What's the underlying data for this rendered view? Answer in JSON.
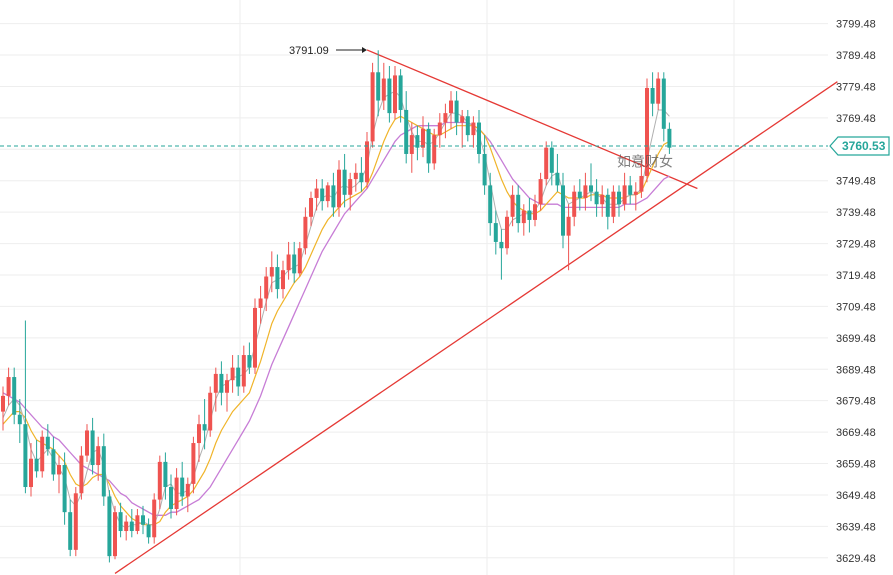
{
  "chart_data": {
    "type": "candlestick",
    "title": "",
    "xlabel": "",
    "ylabel": "",
    "ylim": [
      3624,
      3807
    ],
    "y_ticks": [
      3799.48,
      3789.48,
      3779.48,
      3769.48,
      3759.48,
      3749.48,
      3739.48,
      3729.48,
      3719.48,
      3709.48,
      3699.48,
      3689.48,
      3679.48,
      3669.48,
      3659.48,
      3649.48,
      3639.48,
      3629.48
    ],
    "y_tick_labels": [
      "3799.48",
      "3789.48",
      "3779.48",
      "3769.48",
      "3759.48",
      "3749.48",
      "3739.48",
      "3729.48",
      "3719.48",
      "3709.48",
      "3699.48",
      "3689.48",
      "3679.48",
      "3669.48",
      "3659.48",
      "3649.48",
      "3639.48",
      "3629.48"
    ],
    "grid": true,
    "last_price": 3760.53,
    "last_price_label": "3760.53",
    "high_marker": {
      "value": 3791.09,
      "label": "3791.09"
    },
    "watermark": "如意财女",
    "colors": {
      "up": "#ef5350",
      "down": "#26a69a",
      "trendline": "#e53935",
      "ma_fast": "#b0b0b0",
      "ma_mid": "#f0b429",
      "ma_slow": "#c77dd6",
      "price_line": "#26a69a",
      "grid": "#eeeeee"
    },
    "candles": [
      {
        "o": 3676,
        "h": 3684,
        "l": 3670,
        "c": 3681
      },
      {
        "o": 3681,
        "h": 3690,
        "l": 3678,
        "c": 3687
      },
      {
        "o": 3687,
        "h": 3690,
        "l": 3672,
        "c": 3675
      },
      {
        "o": 3675,
        "h": 3680,
        "l": 3666,
        "c": 3672
      },
      {
        "o": 3672,
        "h": 3705,
        "l": 3650,
        "c": 3652
      },
      {
        "o": 3652,
        "h": 3666,
        "l": 3649,
        "c": 3661
      },
      {
        "o": 3661,
        "h": 3667,
        "l": 3655,
        "c": 3657
      },
      {
        "o": 3657,
        "h": 3670,
        "l": 3655,
        "c": 3668
      },
      {
        "o": 3668,
        "h": 3672,
        "l": 3662,
        "c": 3664
      },
      {
        "o": 3664,
        "h": 3668,
        "l": 3654,
        "c": 3656
      },
      {
        "o": 3656,
        "h": 3662,
        "l": 3650,
        "c": 3659
      },
      {
        "o": 3659,
        "h": 3663,
        "l": 3640,
        "c": 3644
      },
      {
        "o": 3644,
        "h": 3648,
        "l": 3630,
        "c": 3632
      },
      {
        "o": 3632,
        "h": 3652,
        "l": 3630,
        "c": 3650
      },
      {
        "o": 3650,
        "h": 3665,
        "l": 3648,
        "c": 3662
      },
      {
        "o": 3662,
        "h": 3672,
        "l": 3660,
        "c": 3670
      },
      {
        "o": 3670,
        "h": 3674,
        "l": 3656,
        "c": 3659
      },
      {
        "o": 3659,
        "h": 3668,
        "l": 3654,
        "c": 3665
      },
      {
        "o": 3665,
        "h": 3669,
        "l": 3646,
        "c": 3649
      },
      {
        "o": 3649,
        "h": 3651,
        "l": 3628,
        "c": 3630
      },
      {
        "o": 3630,
        "h": 3646,
        "l": 3629,
        "c": 3644
      },
      {
        "o": 3644,
        "h": 3647,
        "l": 3636,
        "c": 3638
      },
      {
        "o": 3638,
        "h": 3643,
        "l": 3635,
        "c": 3641
      },
      {
        "o": 3641,
        "h": 3645,
        "l": 3636,
        "c": 3638
      },
      {
        "o": 3638,
        "h": 3645,
        "l": 3637,
        "c": 3643
      },
      {
        "o": 3643,
        "h": 3646,
        "l": 3637,
        "c": 3640
      },
      {
        "o": 3640,
        "h": 3642,
        "l": 3634,
        "c": 3636
      },
      {
        "o": 3636,
        "h": 3650,
        "l": 3634,
        "c": 3648
      },
      {
        "o": 3648,
        "h": 3662,
        "l": 3645,
        "c": 3660
      },
      {
        "o": 3660,
        "h": 3663,
        "l": 3648,
        "c": 3652
      },
      {
        "o": 3652,
        "h": 3656,
        "l": 3642,
        "c": 3645
      },
      {
        "o": 3645,
        "h": 3658,
        "l": 3643,
        "c": 3655
      },
      {
        "o": 3655,
        "h": 3660,
        "l": 3646,
        "c": 3649
      },
      {
        "o": 3649,
        "h": 3655,
        "l": 3644,
        "c": 3653
      },
      {
        "o": 3653,
        "h": 3668,
        "l": 3650,
        "c": 3666
      },
      {
        "o": 3666,
        "h": 3675,
        "l": 3660,
        "c": 3672
      },
      {
        "o": 3672,
        "h": 3680,
        "l": 3664,
        "c": 3670
      },
      {
        "o": 3670,
        "h": 3684,
        "l": 3668,
        "c": 3682
      },
      {
        "o": 3682,
        "h": 3690,
        "l": 3676,
        "c": 3688
      },
      {
        "o": 3688,
        "h": 3692,
        "l": 3678,
        "c": 3682
      },
      {
        "o": 3682,
        "h": 3688,
        "l": 3676,
        "c": 3686
      },
      {
        "o": 3686,
        "h": 3694,
        "l": 3682,
        "c": 3690
      },
      {
        "o": 3690,
        "h": 3694,
        "l": 3681,
        "c": 3684
      },
      {
        "o": 3684,
        "h": 3697,
        "l": 3682,
        "c": 3694
      },
      {
        "o": 3694,
        "h": 3698,
        "l": 3688,
        "c": 3690
      },
      {
        "o": 3690,
        "h": 3712,
        "l": 3688,
        "c": 3709
      },
      {
        "o": 3709,
        "h": 3716,
        "l": 3704,
        "c": 3712
      },
      {
        "o": 3712,
        "h": 3722,
        "l": 3708,
        "c": 3719
      },
      {
        "o": 3719,
        "h": 3727,
        "l": 3714,
        "c": 3722
      },
      {
        "o": 3722,
        "h": 3726,
        "l": 3712,
        "c": 3715
      },
      {
        "o": 3715,
        "h": 3724,
        "l": 3712,
        "c": 3721
      },
      {
        "o": 3721,
        "h": 3730,
        "l": 3718,
        "c": 3726
      },
      {
        "o": 3726,
        "h": 3730,
        "l": 3717,
        "c": 3720
      },
      {
        "o": 3720,
        "h": 3730,
        "l": 3719,
        "c": 3728
      },
      {
        "o": 3728,
        "h": 3741,
        "l": 3726,
        "c": 3738
      },
      {
        "o": 3738,
        "h": 3746,
        "l": 3735,
        "c": 3744
      },
      {
        "o": 3744,
        "h": 3750,
        "l": 3740,
        "c": 3747
      },
      {
        "o": 3747,
        "h": 3750,
        "l": 3740,
        "c": 3743
      },
      {
        "o": 3743,
        "h": 3749,
        "l": 3741,
        "c": 3748
      },
      {
        "o": 3748,
        "h": 3752,
        "l": 3738,
        "c": 3741
      },
      {
        "o": 3741,
        "h": 3756,
        "l": 3738,
        "c": 3753
      },
      {
        "o": 3753,
        "h": 3758,
        "l": 3741,
        "c": 3745
      },
      {
        "o": 3745,
        "h": 3752,
        "l": 3740,
        "c": 3750
      },
      {
        "o": 3750,
        "h": 3755,
        "l": 3746,
        "c": 3752
      },
      {
        "o": 3752,
        "h": 3757,
        "l": 3746,
        "c": 3749
      },
      {
        "o": 3749,
        "h": 3765,
        "l": 3747,
        "c": 3762
      },
      {
        "o": 3762,
        "h": 3787,
        "l": 3760,
        "c": 3784
      },
      {
        "o": 3784,
        "h": 3791,
        "l": 3770,
        "c": 3775
      },
      {
        "o": 3775,
        "h": 3787,
        "l": 3772,
        "c": 3782
      },
      {
        "o": 3782,
        "h": 3786,
        "l": 3768,
        "c": 3771
      },
      {
        "o": 3771,
        "h": 3786,
        "l": 3769,
        "c": 3783
      },
      {
        "o": 3783,
        "h": 3785,
        "l": 3768,
        "c": 3772
      },
      {
        "o": 3772,
        "h": 3778,
        "l": 3755,
        "c": 3758
      },
      {
        "o": 3758,
        "h": 3768,
        "l": 3752,
        "c": 3764
      },
      {
        "o": 3764,
        "h": 3767,
        "l": 3756,
        "c": 3760
      },
      {
        "o": 3760,
        "h": 3770,
        "l": 3757,
        "c": 3766
      },
      {
        "o": 3766,
        "h": 3768,
        "l": 3752,
        "c": 3755
      },
      {
        "o": 3755,
        "h": 3766,
        "l": 3753,
        "c": 3764
      },
      {
        "o": 3764,
        "h": 3771,
        "l": 3760,
        "c": 3768
      },
      {
        "o": 3768,
        "h": 3774,
        "l": 3763,
        "c": 3771
      },
      {
        "o": 3771,
        "h": 3778,
        "l": 3766,
        "c": 3775
      },
      {
        "o": 3775,
        "h": 3778,
        "l": 3764,
        "c": 3768
      },
      {
        "o": 3768,
        "h": 3772,
        "l": 3760,
        "c": 3770
      },
      {
        "o": 3770,
        "h": 3772,
        "l": 3762,
        "c": 3764
      },
      {
        "o": 3764,
        "h": 3770,
        "l": 3760,
        "c": 3768
      },
      {
        "o": 3768,
        "h": 3772,
        "l": 3755,
        "c": 3758
      },
      {
        "o": 3758,
        "h": 3764,
        "l": 3745,
        "c": 3748
      },
      {
        "o": 3748,
        "h": 3752,
        "l": 3732,
        "c": 3736
      },
      {
        "o": 3736,
        "h": 3740,
        "l": 3726,
        "c": 3730
      },
      {
        "o": 3730,
        "h": 3734,
        "l": 3718,
        "c": 3728
      },
      {
        "o": 3728,
        "h": 3740,
        "l": 3726,
        "c": 3738
      },
      {
        "o": 3738,
        "h": 3748,
        "l": 3735,
        "c": 3745
      },
      {
        "o": 3745,
        "h": 3748,
        "l": 3733,
        "c": 3736
      },
      {
        "o": 3736,
        "h": 3742,
        "l": 3732,
        "c": 3740
      },
      {
        "o": 3740,
        "h": 3744,
        "l": 3733,
        "c": 3737
      },
      {
        "o": 3737,
        "h": 3745,
        "l": 3735,
        "c": 3742
      },
      {
        "o": 3742,
        "h": 3752,
        "l": 3740,
        "c": 3750
      },
      {
        "o": 3750,
        "h": 3762,
        "l": 3748,
        "c": 3760
      },
      {
        "o": 3760,
        "h": 3762,
        "l": 3748,
        "c": 3752
      },
      {
        "o": 3752,
        "h": 3758,
        "l": 3746,
        "c": 3748
      },
      {
        "o": 3748,
        "h": 3752,
        "l": 3728,
        "c": 3732
      },
      {
        "o": 3732,
        "h": 3742,
        "l": 3721,
        "c": 3738
      },
      {
        "o": 3738,
        "h": 3748,
        "l": 3735,
        "c": 3746
      },
      {
        "o": 3746,
        "h": 3750,
        "l": 3740,
        "c": 3744
      },
      {
        "o": 3744,
        "h": 3752,
        "l": 3740,
        "c": 3748
      },
      {
        "o": 3748,
        "h": 3755,
        "l": 3743,
        "c": 3746
      },
      {
        "o": 3746,
        "h": 3750,
        "l": 3738,
        "c": 3742
      },
      {
        "o": 3742,
        "h": 3748,
        "l": 3738,
        "c": 3745
      },
      {
        "o": 3745,
        "h": 3747,
        "l": 3734,
        "c": 3738
      },
      {
        "o": 3738,
        "h": 3748,
        "l": 3736,
        "c": 3746
      },
      {
        "o": 3746,
        "h": 3748,
        "l": 3738,
        "c": 3742
      },
      {
        "o": 3742,
        "h": 3752,
        "l": 3740,
        "c": 3748
      },
      {
        "o": 3748,
        "h": 3751,
        "l": 3742,
        "c": 3745
      },
      {
        "o": 3745,
        "h": 3749,
        "l": 3740,
        "c": 3746
      },
      {
        "o": 3746,
        "h": 3756,
        "l": 3744,
        "c": 3751
      },
      {
        "o": 3751,
        "h": 3782,
        "l": 3749,
        "c": 3779
      },
      {
        "o": 3779,
        "h": 3784,
        "l": 3770,
        "c": 3774
      },
      {
        "o": 3774,
        "h": 3784,
        "l": 3772,
        "c": 3782
      },
      {
        "o": 3782,
        "h": 3784,
        "l": 3762,
        "c": 3766
      },
      {
        "o": 3766,
        "h": 3768,
        "l": 3758,
        "c": 3760
      }
    ],
    "ma_fast": [
      3674,
      3678,
      3680,
      3678,
      3672,
      3664,
      3660,
      3662,
      3664,
      3661,
      3658,
      3655,
      3648,
      3646,
      3650,
      3657,
      3663,
      3664,
      3659,
      3650,
      3644,
      3640,
      3639,
      3640,
      3640,
      3641,
      3640,
      3640,
      3645,
      3652,
      3653,
      3650,
      3650,
      3651,
      3655,
      3661,
      3666,
      3673,
      3680,
      3684,
      3685,
      3687,
      3687,
      3688,
      3690,
      3697,
      3704,
      3711,
      3717,
      3718,
      3719,
      3721,
      3722,
      3723,
      3729,
      3735,
      3741,
      3744,
      3745,
      3744,
      3747,
      3748,
      3747,
      3748,
      3750,
      3754,
      3764,
      3771,
      3776,
      3777,
      3778,
      3776,
      3770,
      3765,
      3762,
      3762,
      3761,
      3762,
      3765,
      3768,
      3771,
      3771,
      3770,
      3768,
      3767,
      3764,
      3758,
      3749,
      3740,
      3734,
      3734,
      3737,
      3738,
      3739,
      3739,
      3740,
      3743,
      3748,
      3751,
      3752,
      3746,
      3742,
      3743,
      3744,
      3745,
      3746,
      3745,
      3744,
      3742,
      3742,
      3742,
      3744,
      3745,
      3745,
      3747,
      3756,
      3764,
      3772,
      3772,
      3770
    ],
    "ma_mid": [
      3672,
      3674,
      3676,
      3676,
      3674,
      3670,
      3667,
      3666,
      3665,
      3664,
      3662,
      3660,
      3656,
      3653,
      3652,
      3653,
      3655,
      3656,
      3656,
      3653,
      3649,
      3646,
      3644,
      3642,
      3641,
      3640,
      3640,
      3640,
      3641,
      3644,
      3646,
      3647,
      3648,
      3649,
      3651,
      3654,
      3657,
      3661,
      3666,
      3670,
      3673,
      3676,
      3678,
      3680,
      3682,
      3687,
      3692,
      3698,
      3704,
      3708,
      3711,
      3714,
      3717,
      3719,
      3722,
      3726,
      3730,
      3734,
      3737,
      3739,
      3741,
      3743,
      3744,
      3745,
      3746,
      3748,
      3752,
      3757,
      3762,
      3766,
      3769,
      3770,
      3769,
      3768,
      3767,
      3766,
      3765,
      3764,
      3764,
      3765,
      3766,
      3767,
      3767,
      3767,
      3767,
      3766,
      3764,
      3760,
      3755,
      3750,
      3746,
      3743,
      3741,
      3740,
      3739,
      3739,
      3740,
      3742,
      3744,
      3746,
      3745,
      3744,
      3744,
      3744,
      3744,
      3745,
      3745,
      3745,
      3744,
      3744,
      3744,
      3744,
      3745,
      3745,
      3746,
      3750,
      3754,
      3758,
      3761,
      3762
    ],
    "ma_slow": [
      3682,
      3681,
      3680,
      3679,
      3677,
      3675,
      3673,
      3671,
      3670,
      3668,
      3667,
      3665,
      3663,
      3661,
      3659,
      3658,
      3657,
      3656,
      3655,
      3654,
      3652,
      3650,
      3649,
      3647,
      3646,
      3645,
      3644,
      3643,
      3643,
      3643,
      3644,
      3644,
      3645,
      3646,
      3647,
      3648,
      3650,
      3652,
      3655,
      3658,
      3661,
      3664,
      3667,
      3670,
      3673,
      3677,
      3681,
      3686,
      3691,
      3695,
      3699,
      3703,
      3707,
      3711,
      3715,
      3719,
      3723,
      3727,
      3730,
      3733,
      3736,
      3739,
      3741,
      3743,
      3745,
      3747,
      3750,
      3753,
      3756,
      3759,
      3762,
      3764,
      3765,
      3766,
      3767,
      3767,
      3767,
      3767,
      3767,
      3768,
      3768,
      3768,
      3768,
      3768,
      3767,
      3766,
      3764,
      3762,
      3759,
      3756,
      3753,
      3750,
      3748,
      3746,
      3744,
      3743,
      3742,
      3742,
      3742,
      3742,
      3741,
      3741,
      3741,
      3741,
      3741,
      3741,
      3741,
      3741,
      3741,
      3741,
      3741,
      3742,
      3742,
      3742,
      3743,
      3744,
      3746,
      3748,
      3750,
      3751
    ],
    "trendlines": [
      {
        "name": "support",
        "from": {
          "candle": 20,
          "value": 3624.5
        },
        "to": {
          "candle": 149,
          "value": 3781
        }
      },
      {
        "name": "resistance",
        "from": {
          "candle": 65,
          "value": 3791.1
        },
        "to": {
          "candle": 124,
          "value": 3747
        }
      }
    ]
  }
}
